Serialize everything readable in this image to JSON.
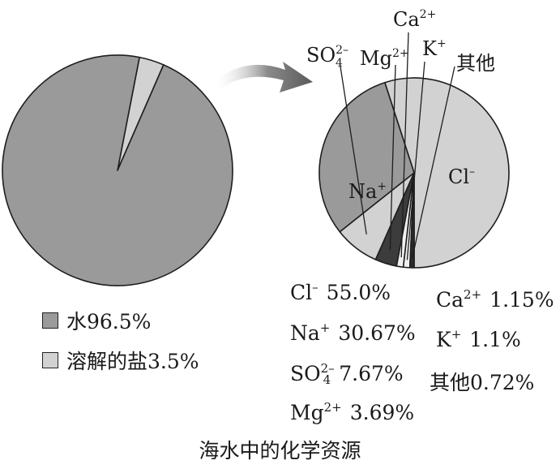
{
  "colors": {
    "dark": "#9a9a9a",
    "light": "#d2d2d2",
    "sliver": "#f0f0f0",
    "stroke": "#1e1e1e"
  },
  "chart_data": [
    {
      "type": "pie",
      "title": "",
      "slices": [
        {
          "label": "水",
          "value": 96.5
        },
        {
          "label": "溶解的盐",
          "value": 3.5
        }
      ],
      "legend": [
        {
          "text": "水96.5%",
          "color": "dark"
        },
        {
          "text": "溶解的盐3.5%",
          "color": "light"
        }
      ]
    },
    {
      "type": "pie",
      "title": "",
      "slices": [
        {
          "label": "Cl⁻",
          "value": 55.0
        },
        {
          "label": "Na⁺",
          "value": 30.67
        },
        {
          "label": "SO₄²⁻",
          "value": 7.67
        },
        {
          "label": "Mg²⁺",
          "value": 3.69
        },
        {
          "label": "Ca²⁺",
          "value": 1.15
        },
        {
          "label": "K⁺",
          "value": 1.1
        },
        {
          "label": "其他",
          "value": 0.72
        }
      ],
      "stats": [
        {
          "ion": "Cl",
          "sub": "",
          "sup": "–",
          "value": "55.0%"
        },
        {
          "ion": "Na",
          "sub": "",
          "sup": "+",
          "value": "30.67%"
        },
        {
          "ion": "SO",
          "sub": "4",
          "sup": "2–",
          "value": "7.67%"
        },
        {
          "ion": "Mg",
          "sub": "",
          "sup": "2+",
          "value": "3.69%"
        },
        {
          "ion": "Ca",
          "sub": "",
          "sup": "2+",
          "value": "1.15%"
        },
        {
          "ion": "K",
          "sub": "",
          "sup": "+",
          "value": "1.1%"
        },
        {
          "ion": "其他",
          "sub": "",
          "sup": "",
          "value": "0.72%"
        }
      ]
    }
  ],
  "caption": "海水中的化学资源"
}
